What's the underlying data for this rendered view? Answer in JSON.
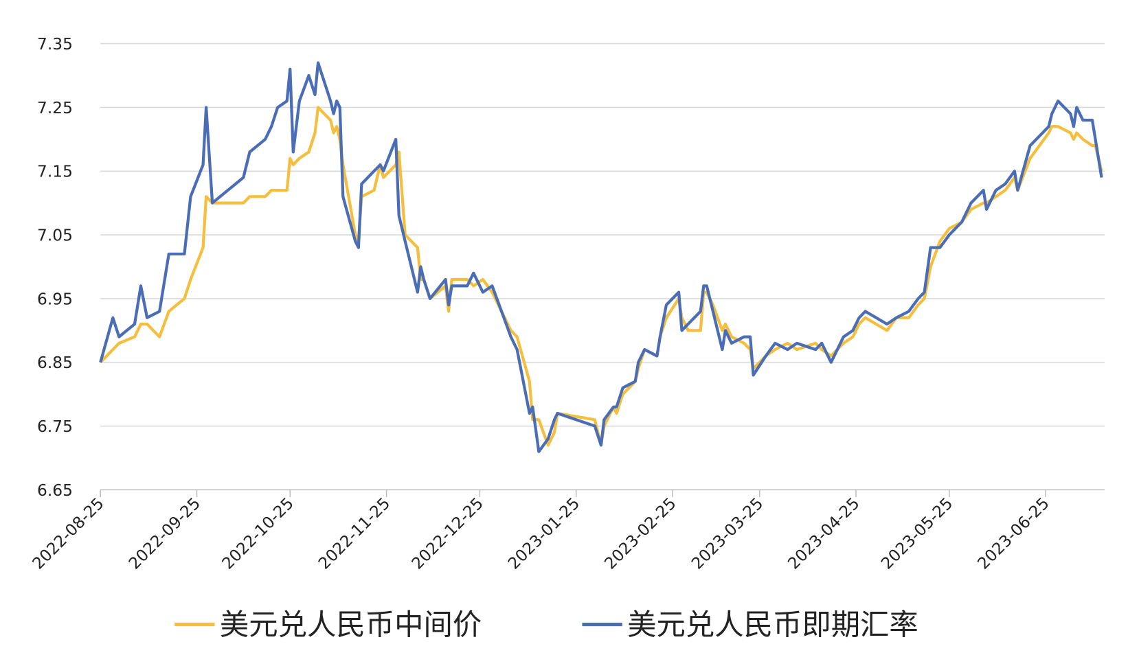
{
  "chart_data": {
    "type": "line",
    "x": [
      "2022-08-25",
      "2022-08-29",
      "2022-08-31",
      "2022-09-05",
      "2022-09-07",
      "2022-09-09",
      "2022-09-13",
      "2022-09-16",
      "2022-09-21",
      "2022-09-23",
      "2022-09-27",
      "2022-09-28",
      "2022-09-30",
      "2022-10-10",
      "2022-10-12",
      "2022-10-17",
      "2022-10-19",
      "2022-10-21",
      "2022-10-24",
      "2022-10-25",
      "2022-10-26",
      "2022-10-28",
      "2022-10-31",
      "2022-11-02",
      "2022-11-03",
      "2022-11-07",
      "2022-11-08",
      "2022-11-09",
      "2022-11-10",
      "2022-11-11",
      "2022-11-15",
      "2022-11-16",
      "2022-11-17",
      "2022-11-21",
      "2022-11-23",
      "2022-11-24",
      "2022-11-28",
      "2022-11-29",
      "2022-12-01",
      "2022-12-05",
      "2022-12-06",
      "2022-12-07",
      "2022-12-09",
      "2022-12-14",
      "2022-12-15",
      "2022-12-16",
      "2022-12-21",
      "2022-12-23",
      "2022-12-26",
      "2022-12-29",
      "2023-01-04",
      "2023-01-06",
      "2023-01-10",
      "2023-01-11",
      "2023-01-13",
      "2023-01-16",
      "2023-01-18",
      "2023-01-19",
      "2023-01-31",
      "2023-02-02",
      "2023-02-03",
      "2023-02-06",
      "2023-02-07",
      "2023-02-09",
      "2023-02-13",
      "2023-02-14",
      "2023-02-16",
      "2023-02-20",
      "2023-02-21",
      "2023-02-23",
      "2023-02-27",
      "2023-02-28",
      "2023-03-02",
      "2023-03-06",
      "2023-03-07",
      "2023-03-08",
      "2023-03-10",
      "2023-03-13",
      "2023-03-14",
      "2023-03-16",
      "2023-03-20",
      "2023-03-22",
      "2023-03-23",
      "2023-03-27",
      "2023-03-30",
      "2023-04-03",
      "2023-04-06",
      "2023-04-12",
      "2023-04-14",
      "2023-04-17",
      "2023-04-21",
      "2023-04-24",
      "2023-04-26",
      "2023-04-28",
      "2023-05-05",
      "2023-05-08",
      "2023-05-12",
      "2023-05-15",
      "2023-05-17",
      "2023-05-19",
      "2023-05-22",
      "2023-05-25",
      "2023-05-29",
      "2023-06-01",
      "2023-06-05",
      "2023-06-06",
      "2023-06-09",
      "2023-06-12",
      "2023-06-15",
      "2023-06-16",
      "2023-06-20",
      "2023-06-26",
      "2023-06-27",
      "2023-06-29",
      "2023-07-03",
      "2023-07-04",
      "2023-07-05",
      "2023-07-07",
      "2023-07-10",
      "2023-07-11",
      "2023-07-13"
    ],
    "series": [
      {
        "name": "美元兑人民币中间价",
        "color": "#f4bf3f",
        "values": [
          6.85,
          6.87,
          6.88,
          6.89,
          6.91,
          6.91,
          6.89,
          6.93,
          6.95,
          6.98,
          7.03,
          7.11,
          7.1,
          7.1,
          7.11,
          7.11,
          7.12,
          7.12,
          7.12,
          7.17,
          7.16,
          7.17,
          7.18,
          7.21,
          7.25,
          7.23,
          7.21,
          7.22,
          7.2,
          7.16,
          7.05,
          7.04,
          7.11,
          7.12,
          7.16,
          7.14,
          7.16,
          7.18,
          7.05,
          7.03,
          6.98,
          6.98,
          6.95,
          6.97,
          6.93,
          6.98,
          6.98,
          6.97,
          6.98,
          6.96,
          6.9,
          6.89,
          6.82,
          6.76,
          6.76,
          6.72,
          6.74,
          6.77,
          6.76,
          6.72,
          6.75,
          6.78,
          6.77,
          6.8,
          6.82,
          6.84,
          6.87,
          6.86,
          6.89,
          6.92,
          6.95,
          6.92,
          6.9,
          6.9,
          6.96,
          6.96,
          6.94,
          6.9,
          6.91,
          6.89,
          6.88,
          6.87,
          6.84,
          6.86,
          6.87,
          6.88,
          6.87,
          6.88,
          6.87,
          6.86,
          6.88,
          6.89,
          6.91,
          6.92,
          6.9,
          6.92,
          6.92,
          6.94,
          6.95,
          7.0,
          7.04,
          7.06,
          7.07,
          7.09,
          7.1,
          7.1,
          7.11,
          7.12,
          7.14,
          7.12,
          7.17,
          7.21,
          7.22,
          7.22,
          7.21,
          7.2,
          7.21,
          7.2,
          7.19,
          7.19,
          7.15
        ]
      },
      {
        "name": "美元兑人民币即期汇率",
        "color": "#4a6db5",
        "values": [
          6.85,
          6.92,
          6.89,
          6.91,
          6.97,
          6.92,
          6.93,
          7.02,
          7.02,
          7.11,
          7.16,
          7.25,
          7.1,
          7.14,
          7.18,
          7.2,
          7.22,
          7.25,
          7.26,
          7.31,
          7.18,
          7.26,
          7.3,
          7.27,
          7.32,
          7.26,
          7.24,
          7.26,
          7.25,
          7.11,
          7.04,
          7.03,
          7.13,
          7.15,
          7.16,
          7.15,
          7.2,
          7.08,
          7.04,
          6.96,
          7.0,
          6.98,
          6.95,
          6.98,
          6.94,
          6.97,
          6.97,
          6.99,
          6.96,
          6.97,
          6.89,
          6.87,
          6.77,
          6.78,
          6.71,
          6.73,
          6.76,
          6.77,
          6.75,
          6.72,
          6.76,
          6.78,
          6.78,
          6.81,
          6.82,
          6.85,
          6.87,
          6.86,
          6.89,
          6.94,
          6.96,
          6.9,
          6.91,
          6.93,
          6.97,
          6.97,
          6.93,
          6.87,
          6.9,
          6.88,
          6.89,
          6.89,
          6.83,
          6.86,
          6.88,
          6.87,
          6.88,
          6.87,
          6.88,
          6.85,
          6.89,
          6.9,
          6.92,
          6.93,
          6.91,
          6.92,
          6.93,
          6.95,
          6.96,
          7.03,
          7.03,
          7.05,
          7.07,
          7.1,
          7.12,
          7.09,
          7.12,
          7.13,
          7.15,
          7.12,
          7.19,
          7.22,
          7.24,
          7.26,
          7.24,
          7.22,
          7.25,
          7.23,
          7.23,
          7.2,
          7.14
        ]
      }
    ],
    "xlim": [
      "2022-08-25",
      "2023-07-14"
    ],
    "xticks": [
      "2022-08-25",
      "2022-09-25",
      "2022-10-25",
      "2022-11-25",
      "2022-12-25",
      "2023-01-25",
      "2023-02-25",
      "2023-03-25",
      "2023-04-25",
      "2023-05-25",
      "2023-06-25"
    ],
    "ylim": [
      6.65,
      7.35
    ],
    "yticks": [
      6.65,
      6.75,
      6.85,
      6.95,
      7.05,
      7.15,
      7.25,
      7.35
    ],
    "grid": true,
    "legend": "bottom"
  }
}
